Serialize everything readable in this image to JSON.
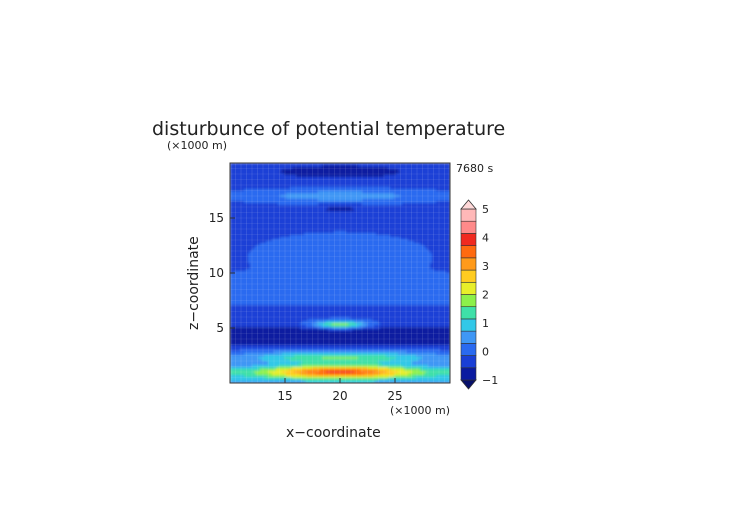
{
  "chart_data": {
    "type": "heatmap",
    "title": "disturbunce of potential temperature",
    "time_label": "7680 s",
    "xlabel": "x−coordinate",
    "ylabel": "z−coordinate",
    "x_unit": "(×1000 m)",
    "y_unit": "(×1000 m)",
    "xlim": [
      10,
      30
    ],
    "ylim": [
      0,
      20
    ],
    "x_ticks": [
      15,
      20,
      25
    ],
    "y_ticks": [
      5,
      10,
      15
    ],
    "colorbar": {
      "min": -1,
      "max": 5,
      "step": 0.5,
      "tick_labels": [
        "5",
        "4",
        "3",
        "2",
        "1",
        "0",
        "−1"
      ],
      "colors": [
        "#0a1aa0",
        "#1a3fd6",
        "#2a6af0",
        "#3f97f5",
        "#32c8e8",
        "#3fe0a8",
        "#8cf04a",
        "#e8ee2a",
        "#ffcc20",
        "#ff9a1a",
        "#ff6a10",
        "#f02a20",
        "#ff8a8a",
        "#ffb8b8"
      ]
    },
    "features": [
      {
        "name": "upper-cold-band",
        "z": 19.2,
        "value": -0.8
      },
      {
        "name": "upper-warm-band",
        "z": 17.0,
        "value": 0.7
      },
      {
        "name": "mid-cold-band",
        "z": 4.3,
        "value": -0.8
      },
      {
        "name": "mid-warm-cap",
        "z": 5.3,
        "value": 2.0
      },
      {
        "name": "lower-warm-band",
        "z": 1.0,
        "value": 3.5
      }
    ]
  }
}
